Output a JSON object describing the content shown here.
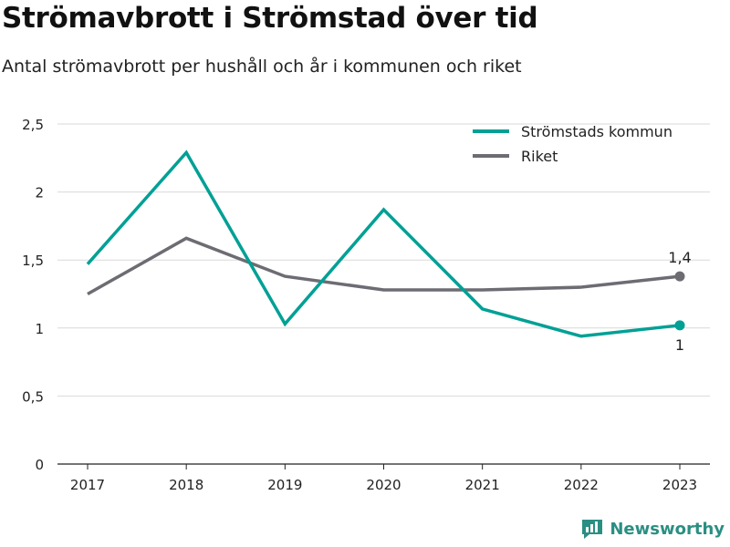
{
  "header": {
    "title": "Strömavbrott i Strömstad över tid",
    "subtitle": "Antal strömavbrott per hushåll och år i kommunen och riket"
  },
  "brand": {
    "name": "Newsworthy",
    "color": "#2a8f82"
  },
  "chart_data": {
    "type": "line",
    "x": [
      "2017",
      "2018",
      "2019",
      "2020",
      "2021",
      "2022",
      "2023"
    ],
    "yticks": [
      "0",
      "0,5",
      "1",
      "1,5",
      "2",
      "2,5"
    ],
    "ylim": [
      0,
      2.5
    ],
    "grid": true,
    "legend_position": "top-right",
    "series": [
      {
        "name": "Strömstads kommun",
        "color": "#00a095",
        "values": [
          1.47,
          2.29,
          1.03,
          1.87,
          1.14,
          0.94,
          1.02
        ],
        "end_label": "1"
      },
      {
        "name": "Riket",
        "color": "#6d6c73",
        "values": [
          1.25,
          1.66,
          1.38,
          1.28,
          1.28,
          1.3,
          1.38
        ],
        "end_label": "1,4"
      }
    ]
  }
}
